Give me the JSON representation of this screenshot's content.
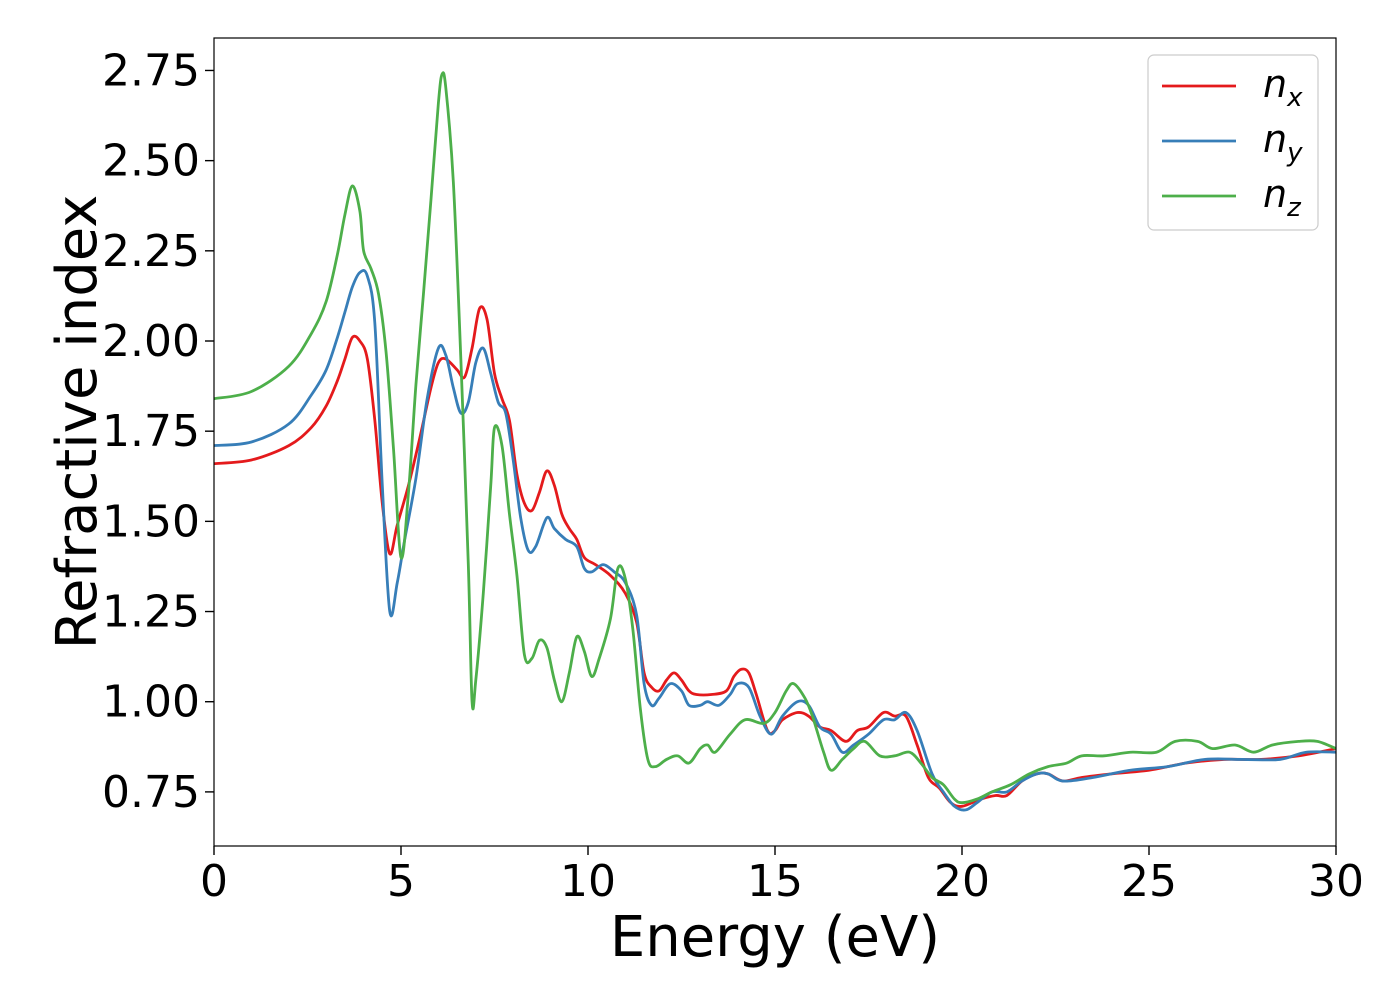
{
  "chart_data": {
    "type": "line",
    "xlabel": "Energy (eV)",
    "ylabel": "Refractive index",
    "xlim": [
      0,
      30
    ],
    "ylim": [
      0.6,
      2.84
    ],
    "xticks": [
      0,
      5,
      10,
      15,
      20,
      25,
      30
    ],
    "xtick_labels": [
      "0",
      "5",
      "10",
      "15",
      "20",
      "25",
      "30"
    ],
    "yticks": [
      0.75,
      1.0,
      1.25,
      1.5,
      1.75,
      2.0,
      2.25,
      2.5,
      2.75
    ],
    "ytick_labels": [
      "0.75",
      "1.00",
      "1.25",
      "1.50",
      "1.75",
      "2.00",
      "2.25",
      "2.50",
      "2.75"
    ],
    "grid": false,
    "legend_position": "top-right",
    "series": [
      {
        "name": "n_x",
        "label_base": "n",
        "label_sub": "x",
        "color": "#e41a1c",
        "points": [
          [
            0,
            1.66
          ],
          [
            1,
            1.67
          ],
          [
            2,
            1.71
          ],
          [
            2.6,
            1.76
          ],
          [
            3,
            1.82
          ],
          [
            3.3,
            1.89
          ],
          [
            3.5,
            1.95
          ],
          [
            3.7,
            2.01
          ],
          [
            3.9,
            2.0
          ],
          [
            4.1,
            1.95
          ],
          [
            4.3,
            1.78
          ],
          [
            4.5,
            1.55
          ],
          [
            4.7,
            1.41
          ],
          [
            4.9,
            1.49
          ],
          [
            5.2,
            1.6
          ],
          [
            5.5,
            1.73
          ],
          [
            5.8,
            1.87
          ],
          [
            6.0,
            1.94
          ],
          [
            6.2,
            1.95
          ],
          [
            6.5,
            1.92
          ],
          [
            6.7,
            1.9
          ],
          [
            6.9,
            1.98
          ],
          [
            7.1,
            2.09
          ],
          [
            7.3,
            2.06
          ],
          [
            7.5,
            1.91
          ],
          [
            7.7,
            1.84
          ],
          [
            7.9,
            1.78
          ],
          [
            8.1,
            1.63
          ],
          [
            8.3,
            1.55
          ],
          [
            8.5,
            1.53
          ],
          [
            8.7,
            1.58
          ],
          [
            8.9,
            1.64
          ],
          [
            9.1,
            1.6
          ],
          [
            9.3,
            1.52
          ],
          [
            9.5,
            1.48
          ],
          [
            9.7,
            1.45
          ],
          [
            9.9,
            1.4
          ],
          [
            10.2,
            1.38
          ],
          [
            10.6,
            1.35
          ],
          [
            11.0,
            1.3
          ],
          [
            11.3,
            1.22
          ],
          [
            11.5,
            1.08
          ],
          [
            11.7,
            1.04
          ],
          [
            11.9,
            1.03
          ],
          [
            12.1,
            1.06
          ],
          [
            12.3,
            1.08
          ],
          [
            12.5,
            1.06
          ],
          [
            12.7,
            1.03
          ],
          [
            12.9,
            1.02
          ],
          [
            13.3,
            1.02
          ],
          [
            13.7,
            1.03
          ],
          [
            13.9,
            1.07
          ],
          [
            14.1,
            1.09
          ],
          [
            14.3,
            1.08
          ],
          [
            14.5,
            1.02
          ],
          [
            14.8,
            0.92
          ],
          [
            15.0,
            0.92
          ],
          [
            15.2,
            0.95
          ],
          [
            15.6,
            0.97
          ],
          [
            15.9,
            0.96
          ],
          [
            16.2,
            0.93
          ],
          [
            16.5,
            0.92
          ],
          [
            16.9,
            0.89
          ],
          [
            17.2,
            0.92
          ],
          [
            17.5,
            0.93
          ],
          [
            17.9,
            0.97
          ],
          [
            18.2,
            0.96
          ],
          [
            18.5,
            0.96
          ],
          [
            18.8,
            0.88
          ],
          [
            19.1,
            0.79
          ],
          [
            19.4,
            0.76
          ],
          [
            19.7,
            0.72
          ],
          [
            20.0,
            0.71
          ],
          [
            20.5,
            0.73
          ],
          [
            20.9,
            0.74
          ],
          [
            21.2,
            0.74
          ],
          [
            21.6,
            0.78
          ],
          [
            22.0,
            0.8
          ],
          [
            22.3,
            0.8
          ],
          [
            22.7,
            0.78
          ],
          [
            23.2,
            0.79
          ],
          [
            24.0,
            0.8
          ],
          [
            25.0,
            0.81
          ],
          [
            26.0,
            0.83
          ],
          [
            27.0,
            0.84
          ],
          [
            28.0,
            0.84
          ],
          [
            29.0,
            0.85
          ],
          [
            30.0,
            0.87
          ]
        ]
      },
      {
        "name": "n_y",
        "label_base": "n",
        "label_sub": "y",
        "color": "#377eb8",
        "points": [
          [
            0,
            1.71
          ],
          [
            1,
            1.72
          ],
          [
            2,
            1.77
          ],
          [
            2.6,
            1.85
          ],
          [
            3,
            1.92
          ],
          [
            3.3,
            2.01
          ],
          [
            3.5,
            2.08
          ],
          [
            3.7,
            2.15
          ],
          [
            3.9,
            2.19
          ],
          [
            4.1,
            2.18
          ],
          [
            4.3,
            2.05
          ],
          [
            4.5,
            1.6
          ],
          [
            4.7,
            1.25
          ],
          [
            4.9,
            1.33
          ],
          [
            5.1,
            1.45
          ],
          [
            5.4,
            1.62
          ],
          [
            5.7,
            1.84
          ],
          [
            6.0,
            1.98
          ],
          [
            6.2,
            1.96
          ],
          [
            6.4,
            1.87
          ],
          [
            6.6,
            1.8
          ],
          [
            6.8,
            1.83
          ],
          [
            7.0,
            1.94
          ],
          [
            7.2,
            1.98
          ],
          [
            7.4,
            1.91
          ],
          [
            7.6,
            1.83
          ],
          [
            7.8,
            1.8
          ],
          [
            8.0,
            1.67
          ],
          [
            8.2,
            1.51
          ],
          [
            8.4,
            1.42
          ],
          [
            8.6,
            1.43
          ],
          [
            8.9,
            1.51
          ],
          [
            9.1,
            1.48
          ],
          [
            9.4,
            1.45
          ],
          [
            9.7,
            1.43
          ],
          [
            9.9,
            1.37
          ],
          [
            10.1,
            1.36
          ],
          [
            10.4,
            1.38
          ],
          [
            10.7,
            1.36
          ],
          [
            11.0,
            1.33
          ],
          [
            11.3,
            1.24
          ],
          [
            11.5,
            1.05
          ],
          [
            11.7,
            0.99
          ],
          [
            11.9,
            1.01
          ],
          [
            12.2,
            1.05
          ],
          [
            12.5,
            1.03
          ],
          [
            12.7,
            0.99
          ],
          [
            13.0,
            0.99
          ],
          [
            13.2,
            1.0
          ],
          [
            13.5,
            0.99
          ],
          [
            13.8,
            1.02
          ],
          [
            14.0,
            1.05
          ],
          [
            14.3,
            1.04
          ],
          [
            14.6,
            0.96
          ],
          [
            14.9,
            0.91
          ],
          [
            15.2,
            0.96
          ],
          [
            15.6,
            1.0
          ],
          [
            15.9,
            0.99
          ],
          [
            16.2,
            0.93
          ],
          [
            16.5,
            0.91
          ],
          [
            16.8,
            0.86
          ],
          [
            17.1,
            0.88
          ],
          [
            17.5,
            0.91
          ],
          [
            17.9,
            0.95
          ],
          [
            18.2,
            0.95
          ],
          [
            18.5,
            0.97
          ],
          [
            18.8,
            0.92
          ],
          [
            19.2,
            0.8
          ],
          [
            19.5,
            0.75
          ],
          [
            19.8,
            0.71
          ],
          [
            20.1,
            0.7
          ],
          [
            20.4,
            0.72
          ],
          [
            20.8,
            0.75
          ],
          [
            21.2,
            0.75
          ],
          [
            21.6,
            0.78
          ],
          [
            22.0,
            0.8
          ],
          [
            22.3,
            0.8
          ],
          [
            22.7,
            0.78
          ],
          [
            23.5,
            0.79
          ],
          [
            24.5,
            0.81
          ],
          [
            25.5,
            0.82
          ],
          [
            26.5,
            0.84
          ],
          [
            27.5,
            0.84
          ],
          [
            28.5,
            0.84
          ],
          [
            29.2,
            0.86
          ],
          [
            30.0,
            0.86
          ]
        ]
      },
      {
        "name": "n_z",
        "label_base": "n",
        "label_sub": "z",
        "color": "#4daf4a",
        "points": [
          [
            0,
            1.84
          ],
          [
            1,
            1.86
          ],
          [
            2,
            1.93
          ],
          [
            2.6,
            2.02
          ],
          [
            3,
            2.11
          ],
          [
            3.3,
            2.24
          ],
          [
            3.5,
            2.35
          ],
          [
            3.7,
            2.43
          ],
          [
            3.9,
            2.36
          ],
          [
            4.0,
            2.25
          ],
          [
            4.2,
            2.2
          ],
          [
            4.4,
            2.13
          ],
          [
            4.6,
            1.97
          ],
          [
            4.8,
            1.7
          ],
          [
            5.0,
            1.4
          ],
          [
            5.2,
            1.58
          ],
          [
            5.4,
            1.88
          ],
          [
            5.6,
            2.13
          ],
          [
            5.8,
            2.39
          ],
          [
            6.0,
            2.66
          ],
          [
            6.1,
            2.74
          ],
          [
            6.2,
            2.7
          ],
          [
            6.4,
            2.44
          ],
          [
            6.6,
            1.95
          ],
          [
            6.8,
            1.38
          ],
          [
            6.9,
            1.0
          ],
          [
            7.0,
            1.06
          ],
          [
            7.2,
            1.3
          ],
          [
            7.4,
            1.6
          ],
          [
            7.5,
            1.76
          ],
          [
            7.7,
            1.71
          ],
          [
            7.9,
            1.52
          ],
          [
            8.1,
            1.35
          ],
          [
            8.3,
            1.13
          ],
          [
            8.5,
            1.12
          ],
          [
            8.7,
            1.17
          ],
          [
            8.9,
            1.15
          ],
          [
            9.1,
            1.06
          ],
          [
            9.3,
            1.0
          ],
          [
            9.5,
            1.08
          ],
          [
            9.7,
            1.18
          ],
          [
            9.9,
            1.14
          ],
          [
            10.1,
            1.07
          ],
          [
            10.3,
            1.12
          ],
          [
            10.6,
            1.23
          ],
          [
            10.8,
            1.37
          ],
          [
            11.0,
            1.34
          ],
          [
            11.2,
            1.2
          ],
          [
            11.4,
            0.98
          ],
          [
            11.6,
            0.84
          ],
          [
            11.8,
            0.82
          ],
          [
            12.1,
            0.84
          ],
          [
            12.4,
            0.85
          ],
          [
            12.7,
            0.83
          ],
          [
            13.0,
            0.87
          ],
          [
            13.2,
            0.88
          ],
          [
            13.4,
            0.86
          ],
          [
            13.8,
            0.91
          ],
          [
            14.2,
            0.95
          ],
          [
            14.7,
            0.94
          ],
          [
            15.0,
            0.97
          ],
          [
            15.3,
            1.03
          ],
          [
            15.5,
            1.05
          ],
          [
            15.8,
            1.01
          ],
          [
            16.0,
            0.96
          ],
          [
            16.3,
            0.86
          ],
          [
            16.5,
            0.81
          ],
          [
            16.8,
            0.84
          ],
          [
            17.1,
            0.87
          ],
          [
            17.4,
            0.89
          ],
          [
            17.8,
            0.85
          ],
          [
            18.2,
            0.85
          ],
          [
            18.6,
            0.86
          ],
          [
            18.9,
            0.83
          ],
          [
            19.2,
            0.79
          ],
          [
            19.5,
            0.77
          ],
          [
            19.8,
            0.73
          ],
          [
            20.0,
            0.72
          ],
          [
            20.4,
            0.73
          ],
          [
            20.8,
            0.75
          ],
          [
            21.3,
            0.77
          ],
          [
            21.8,
            0.8
          ],
          [
            22.3,
            0.82
          ],
          [
            22.8,
            0.83
          ],
          [
            23.2,
            0.85
          ],
          [
            23.8,
            0.85
          ],
          [
            24.5,
            0.86
          ],
          [
            25.2,
            0.86
          ],
          [
            25.7,
            0.89
          ],
          [
            26.3,
            0.89
          ],
          [
            26.7,
            0.87
          ],
          [
            27.3,
            0.88
          ],
          [
            27.8,
            0.86
          ],
          [
            28.3,
            0.88
          ],
          [
            29.0,
            0.89
          ],
          [
            29.5,
            0.89
          ],
          [
            30.0,
            0.87
          ]
        ]
      }
    ]
  }
}
